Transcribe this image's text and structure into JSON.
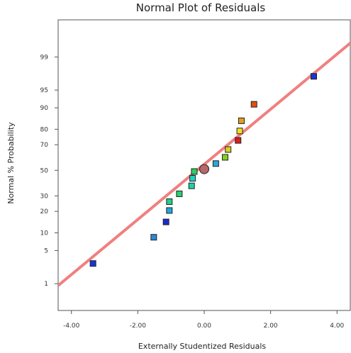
{
  "chart_data": {
    "type": "scatter",
    "title": "Normal Plot of Residuals",
    "xlabel": "Externally Studentized Residuals",
    "ylabel": "Normal % Probability",
    "xlim": [
      -4.4,
      4.4
    ],
    "y_scale": "normal-probability",
    "ylim_percent": [
      0.2,
      99.9
    ],
    "x_ticks": [
      -4.0,
      -2.0,
      0.0,
      2.0,
      4.0
    ],
    "x_tick_labels": [
      "-4.00",
      "-2.00",
      "0.00",
      "2.00",
      "4.00"
    ],
    "y_ticks": [
      1,
      5,
      10,
      20,
      30,
      50,
      70,
      80,
      90,
      95,
      99
    ],
    "y_tick_labels": [
      "1",
      "5",
      "10",
      "20",
      "30",
      "50",
      "70",
      "80",
      "90",
      "95",
      "99"
    ],
    "grid": false,
    "reference_line": {
      "color": "#f08080",
      "through_percent": [
        [
          -4.4,
          0.9
        ],
        [
          4.4,
          99.55
        ]
      ]
    },
    "points": [
      {
        "x": -3.35,
        "y": 2.8,
        "color": "#1536d6",
        "marker": "square"
      },
      {
        "x": -1.52,
        "y": 8.5,
        "color": "#2c8ad6",
        "marker": "square"
      },
      {
        "x": -1.15,
        "y": 14.5,
        "color": "#1a2ad4",
        "marker": "square"
      },
      {
        "x": -1.05,
        "y": 20.5,
        "color": "#1fa6e0",
        "marker": "square"
      },
      {
        "x": -1.05,
        "y": 26.0,
        "color": "#1fd089",
        "marker": "square"
      },
      {
        "x": -0.75,
        "y": 31.5,
        "color": "#2ad070",
        "marker": "square"
      },
      {
        "x": -0.38,
        "y": 37.5,
        "color": "#22d0a8",
        "marker": "square"
      },
      {
        "x": -0.35,
        "y": 43.5,
        "color": "#20d0c0",
        "marker": "square"
      },
      {
        "x": -0.3,
        "y": 49.0,
        "color": "#28d060",
        "marker": "square"
      },
      {
        "x": 0.0,
        "y": 51.0,
        "color": "#b86868",
        "marker": "circle"
      },
      {
        "x": 0.35,
        "y": 55.5,
        "color": "#28a8d8",
        "marker": "square"
      },
      {
        "x": 0.63,
        "y": 60.5,
        "color": "#80d020",
        "marker": "square"
      },
      {
        "x": 0.72,
        "y": 66.5,
        "color": "#d8d020",
        "marker": "square"
      },
      {
        "x": 1.02,
        "y": 73.0,
        "color": "#d82020",
        "marker": "square"
      },
      {
        "x": 1.07,
        "y": 79.0,
        "color": "#f0e020",
        "marker": "square"
      },
      {
        "x": 1.12,
        "y": 84.5,
        "color": "#e0a020",
        "marker": "square"
      },
      {
        "x": 1.5,
        "y": 91.2,
        "color": "#e05010",
        "marker": "square"
      },
      {
        "x": 3.3,
        "y": 97.3,
        "color": "#1536d6",
        "marker": "square"
      }
    ]
  }
}
